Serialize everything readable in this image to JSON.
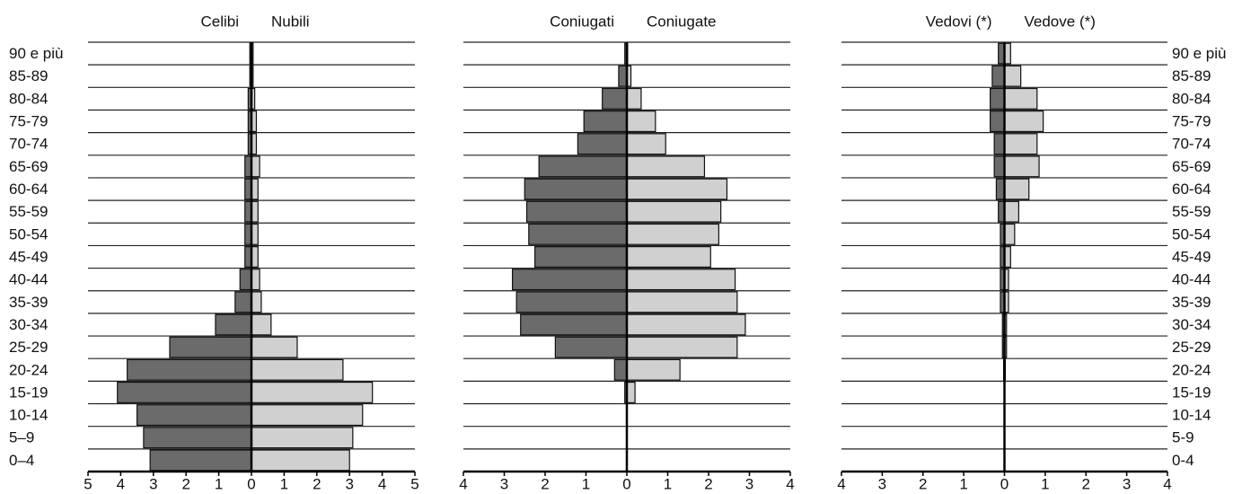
{
  "chart_data": [
    {
      "type": "pyramid",
      "categories": [
        "0–4",
        "5–9",
        "10-14",
        "15-19",
        "20-24",
        "25-29",
        "30-34",
        "35-39",
        "40-44",
        "45-49",
        "50-54",
        "55-59",
        "60-64",
        "65-69",
        "70-74",
        "75-79",
        "80-84",
        "85-89",
        "90 e più"
      ],
      "category_side": "left",
      "series": [
        {
          "name": "Celibi",
          "color": "#6b6b6b",
          "side": "left",
          "values": [
            3.1,
            3.3,
            3.5,
            4.1,
            3.8,
            2.5,
            1.1,
            0.5,
            0.35,
            0.2,
            0.2,
            0.2,
            0.2,
            0.2,
            0.1,
            0.1,
            0.1,
            0.05,
            0.05
          ]
        },
        {
          "name": "Nubili",
          "color": "#d0d0d0",
          "side": "right",
          "values": [
            3.0,
            3.1,
            3.4,
            3.7,
            2.8,
            1.4,
            0.6,
            0.3,
            0.25,
            0.2,
            0.2,
            0.2,
            0.2,
            0.25,
            0.15,
            0.15,
            0.1,
            0.05,
            0.05
          ]
        }
      ],
      "xlim": [
        -5,
        5
      ],
      "xticks": [
        {
          "value": -5,
          "label": "5"
        },
        {
          "value": -4,
          "label": "4"
        },
        {
          "value": -3,
          "label": "3"
        },
        {
          "value": -2,
          "label": "2"
        },
        {
          "value": -1,
          "label": "1"
        },
        0,
        1,
        2,
        3,
        4,
        5
      ]
    },
    {
      "type": "pyramid",
      "categories": [
        null,
        null,
        null,
        null,
        null,
        null,
        null,
        null,
        null,
        null,
        null,
        null,
        null,
        null,
        null,
        null,
        null,
        null,
        null
      ],
      "series": [
        {
          "name": "Coniugati",
          "color": "#6b6b6b",
          "side": "left",
          "values": [
            0,
            0,
            0,
            0.05,
            0.3,
            1.75,
            2.6,
            2.7,
            2.8,
            2.25,
            2.4,
            2.45,
            2.5,
            2.15,
            1.2,
            1.05,
            0.6,
            0.2,
            0.05
          ]
        },
        {
          "name": "Coniugate",
          "color": "#d0d0d0",
          "side": "right",
          "values": [
            0,
            0,
            0,
            0.2,
            1.3,
            2.7,
            2.9,
            2.7,
            2.65,
            2.05,
            2.25,
            2.3,
            2.45,
            1.9,
            0.95,
            0.7,
            0.35,
            0.1,
            0.02
          ]
        }
      ],
      "xlim": [
        -4,
        4
      ],
      "xticks": [
        {
          "value": -4,
          "label": "4"
        },
        {
          "value": -3,
          "label": "3"
        },
        {
          "value": -2,
          "label": "2"
        },
        {
          "value": -1,
          "label": "1"
        },
        0,
        1,
        2,
        3,
        4
      ]
    },
    {
      "type": "pyramid",
      "categories": [
        "0-4",
        "5-9",
        "10-14",
        "15-19",
        "20-24",
        "25-29",
        "30-34",
        "35-39",
        "40-44",
        "45-49",
        "50-54",
        "55-59",
        "60-64",
        "65-69",
        "70-74",
        "75-79",
        "80-84",
        "85-89",
        "90 e più"
      ],
      "category_side": "right",
      "series": [
        {
          "name": "Vedovi (*)",
          "color": "#6b6b6b",
          "side": "left",
          "values": [
            0,
            0,
            0,
            0,
            0.02,
            0.05,
            0.05,
            0.1,
            0.1,
            0.1,
            0.1,
            0.15,
            0.2,
            0.25,
            0.25,
            0.35,
            0.35,
            0.3,
            0.15
          ]
        },
        {
          "name": "Vedove (*)",
          "color": "#d0d0d0",
          "side": "right",
          "values": [
            0,
            0,
            0,
            0,
            0.02,
            0.05,
            0.05,
            0.1,
            0.1,
            0.15,
            0.25,
            0.35,
            0.6,
            0.85,
            0.8,
            0.95,
            0.8,
            0.4,
            0.15
          ]
        }
      ],
      "xlim": [
        -4,
        4
      ],
      "xticks": [
        {
          "value": -4,
          "label": "4"
        },
        {
          "value": -3,
          "label": "3"
        },
        {
          "value": -2,
          "label": "2"
        },
        {
          "value": -1,
          "label": "1"
        },
        0,
        1,
        2,
        3,
        4
      ]
    }
  ]
}
